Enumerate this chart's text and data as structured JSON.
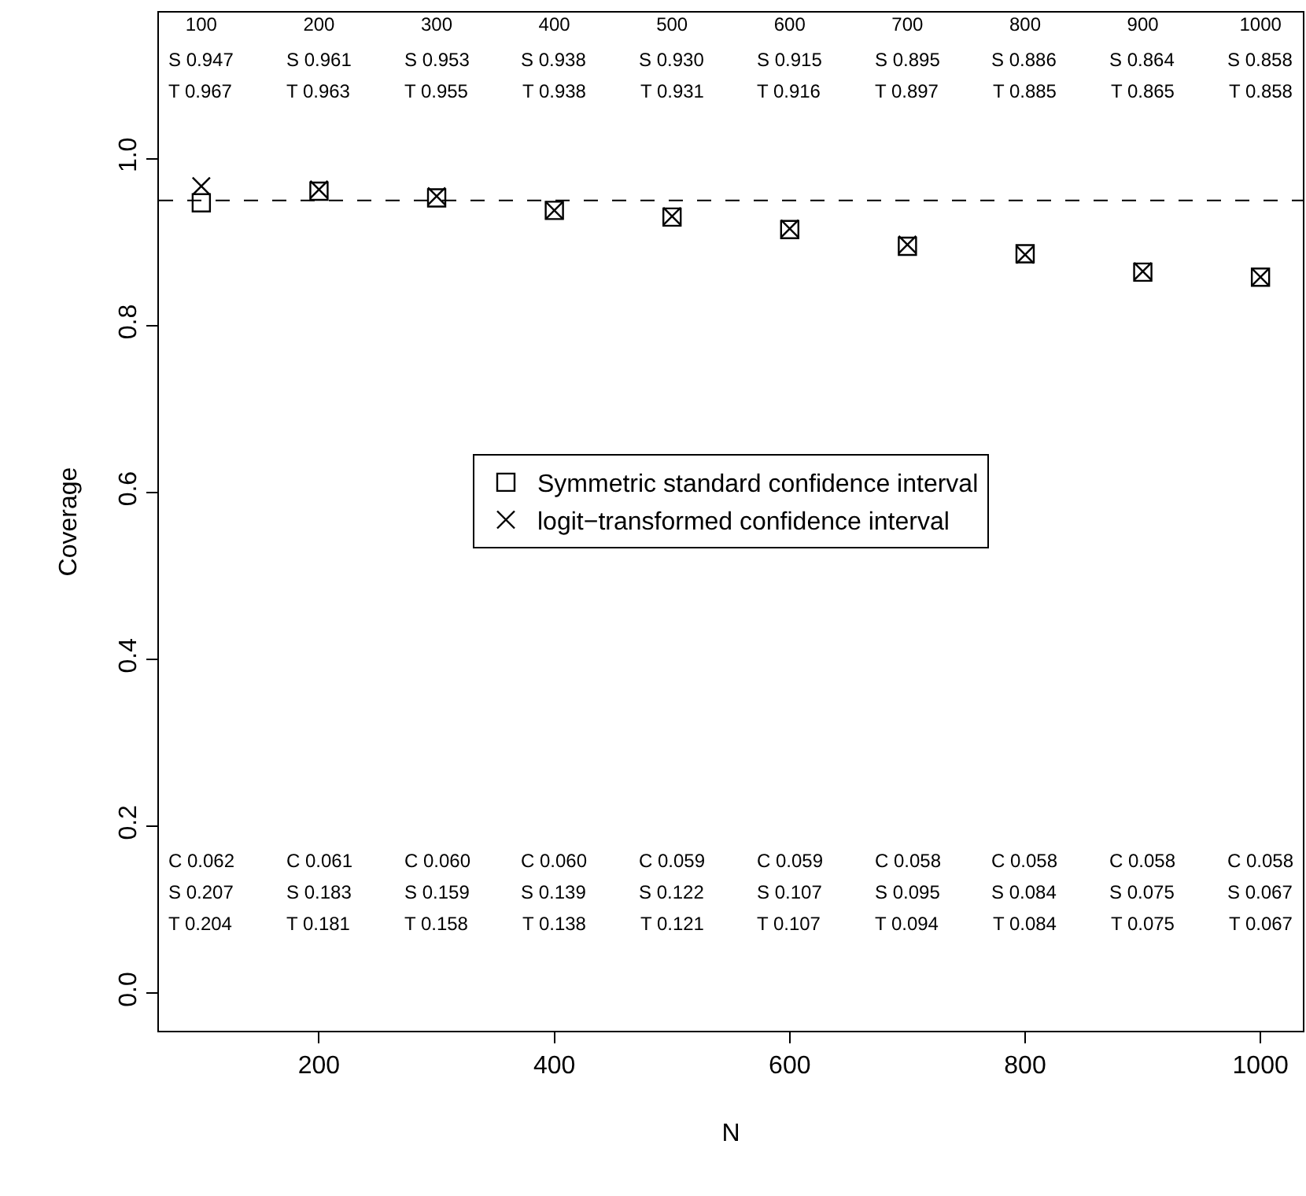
{
  "chart_data": {
    "type": "scatter",
    "xlabel": "N",
    "ylabel": "Coverage",
    "x": [
      100,
      200,
      300,
      400,
      500,
      600,
      700,
      800,
      900,
      1000
    ],
    "series": [
      {
        "name": "Symmetric standard confidence interval",
        "color": "#000000",
        "marker": "square",
        "values": [
          0.947,
          0.961,
          0.953,
          0.938,
          0.93,
          0.915,
          0.895,
          0.886,
          0.864,
          0.858
        ]
      },
      {
        "name": "logit−transformed confidence interval",
        "color": "#000000",
        "marker": "cross",
        "values": [
          0.967,
          0.963,
          0.955,
          0.938,
          0.931,
          0.916,
          0.897,
          0.885,
          0.865,
          0.858
        ]
      }
    ],
    "xlim": [
      64,
      1036
    ],
    "ylim": [
      -0.045,
      1.175
    ],
    "xticks": [
      200,
      400,
      600,
      800,
      1000
    ],
    "x2lim": [
      64,
      1036
    ],
    "x2ticks": [
      100,
      200,
      300,
      400,
      500,
      600,
      700,
      800,
      900,
      1000
    ],
    "yticks": [
      {
        "value": 0,
        "label": "0.0"
      },
      0.2,
      0.4,
      0.6,
      0.8,
      {
        "value": 1,
        "label": "1.0"
      }
    ],
    "ref_lines": [
      {
        "axis": "y",
        "value": 0.95,
        "line_style": "dashed",
        "color": "#000000"
      }
    ],
    "legend": "center",
    "annotations": [
      "S 0.947",
      "S 0.961",
      "S 0.953",
      "S 0.938",
      "S 0.930",
      "S 0.915",
      "S 0.895",
      "S 0.886",
      "S 0.864",
      "S 0.858",
      "T 0.967",
      "T 0.963",
      "T 0.955",
      "T 0.938",
      "T 0.931",
      "T 0.916",
      "T 0.897",
      "T 0.885",
      "T 0.865",
      "T 0.858",
      "C 0.062",
      "C 0.061",
      "C 0.060",
      "C 0.060",
      "C 0.059",
      "C 0.059",
      "C 0.058",
      "C 0.058",
      "C 0.058",
      "C 0.058",
      "S 0.207",
      "S 0.183",
      "S 0.159",
      "S 0.139",
      "S 0.122",
      "S 0.107",
      "S 0.095",
      "S 0.084",
      "S 0.075",
      "S 0.067",
      "T 0.204",
      "T 0.181",
      "T 0.158",
      "T 0.138",
      "T 0.121",
      "T 0.107",
      "T 0.094",
      "T 0.084",
      "T 0.075",
      "T 0.067"
    ]
  }
}
